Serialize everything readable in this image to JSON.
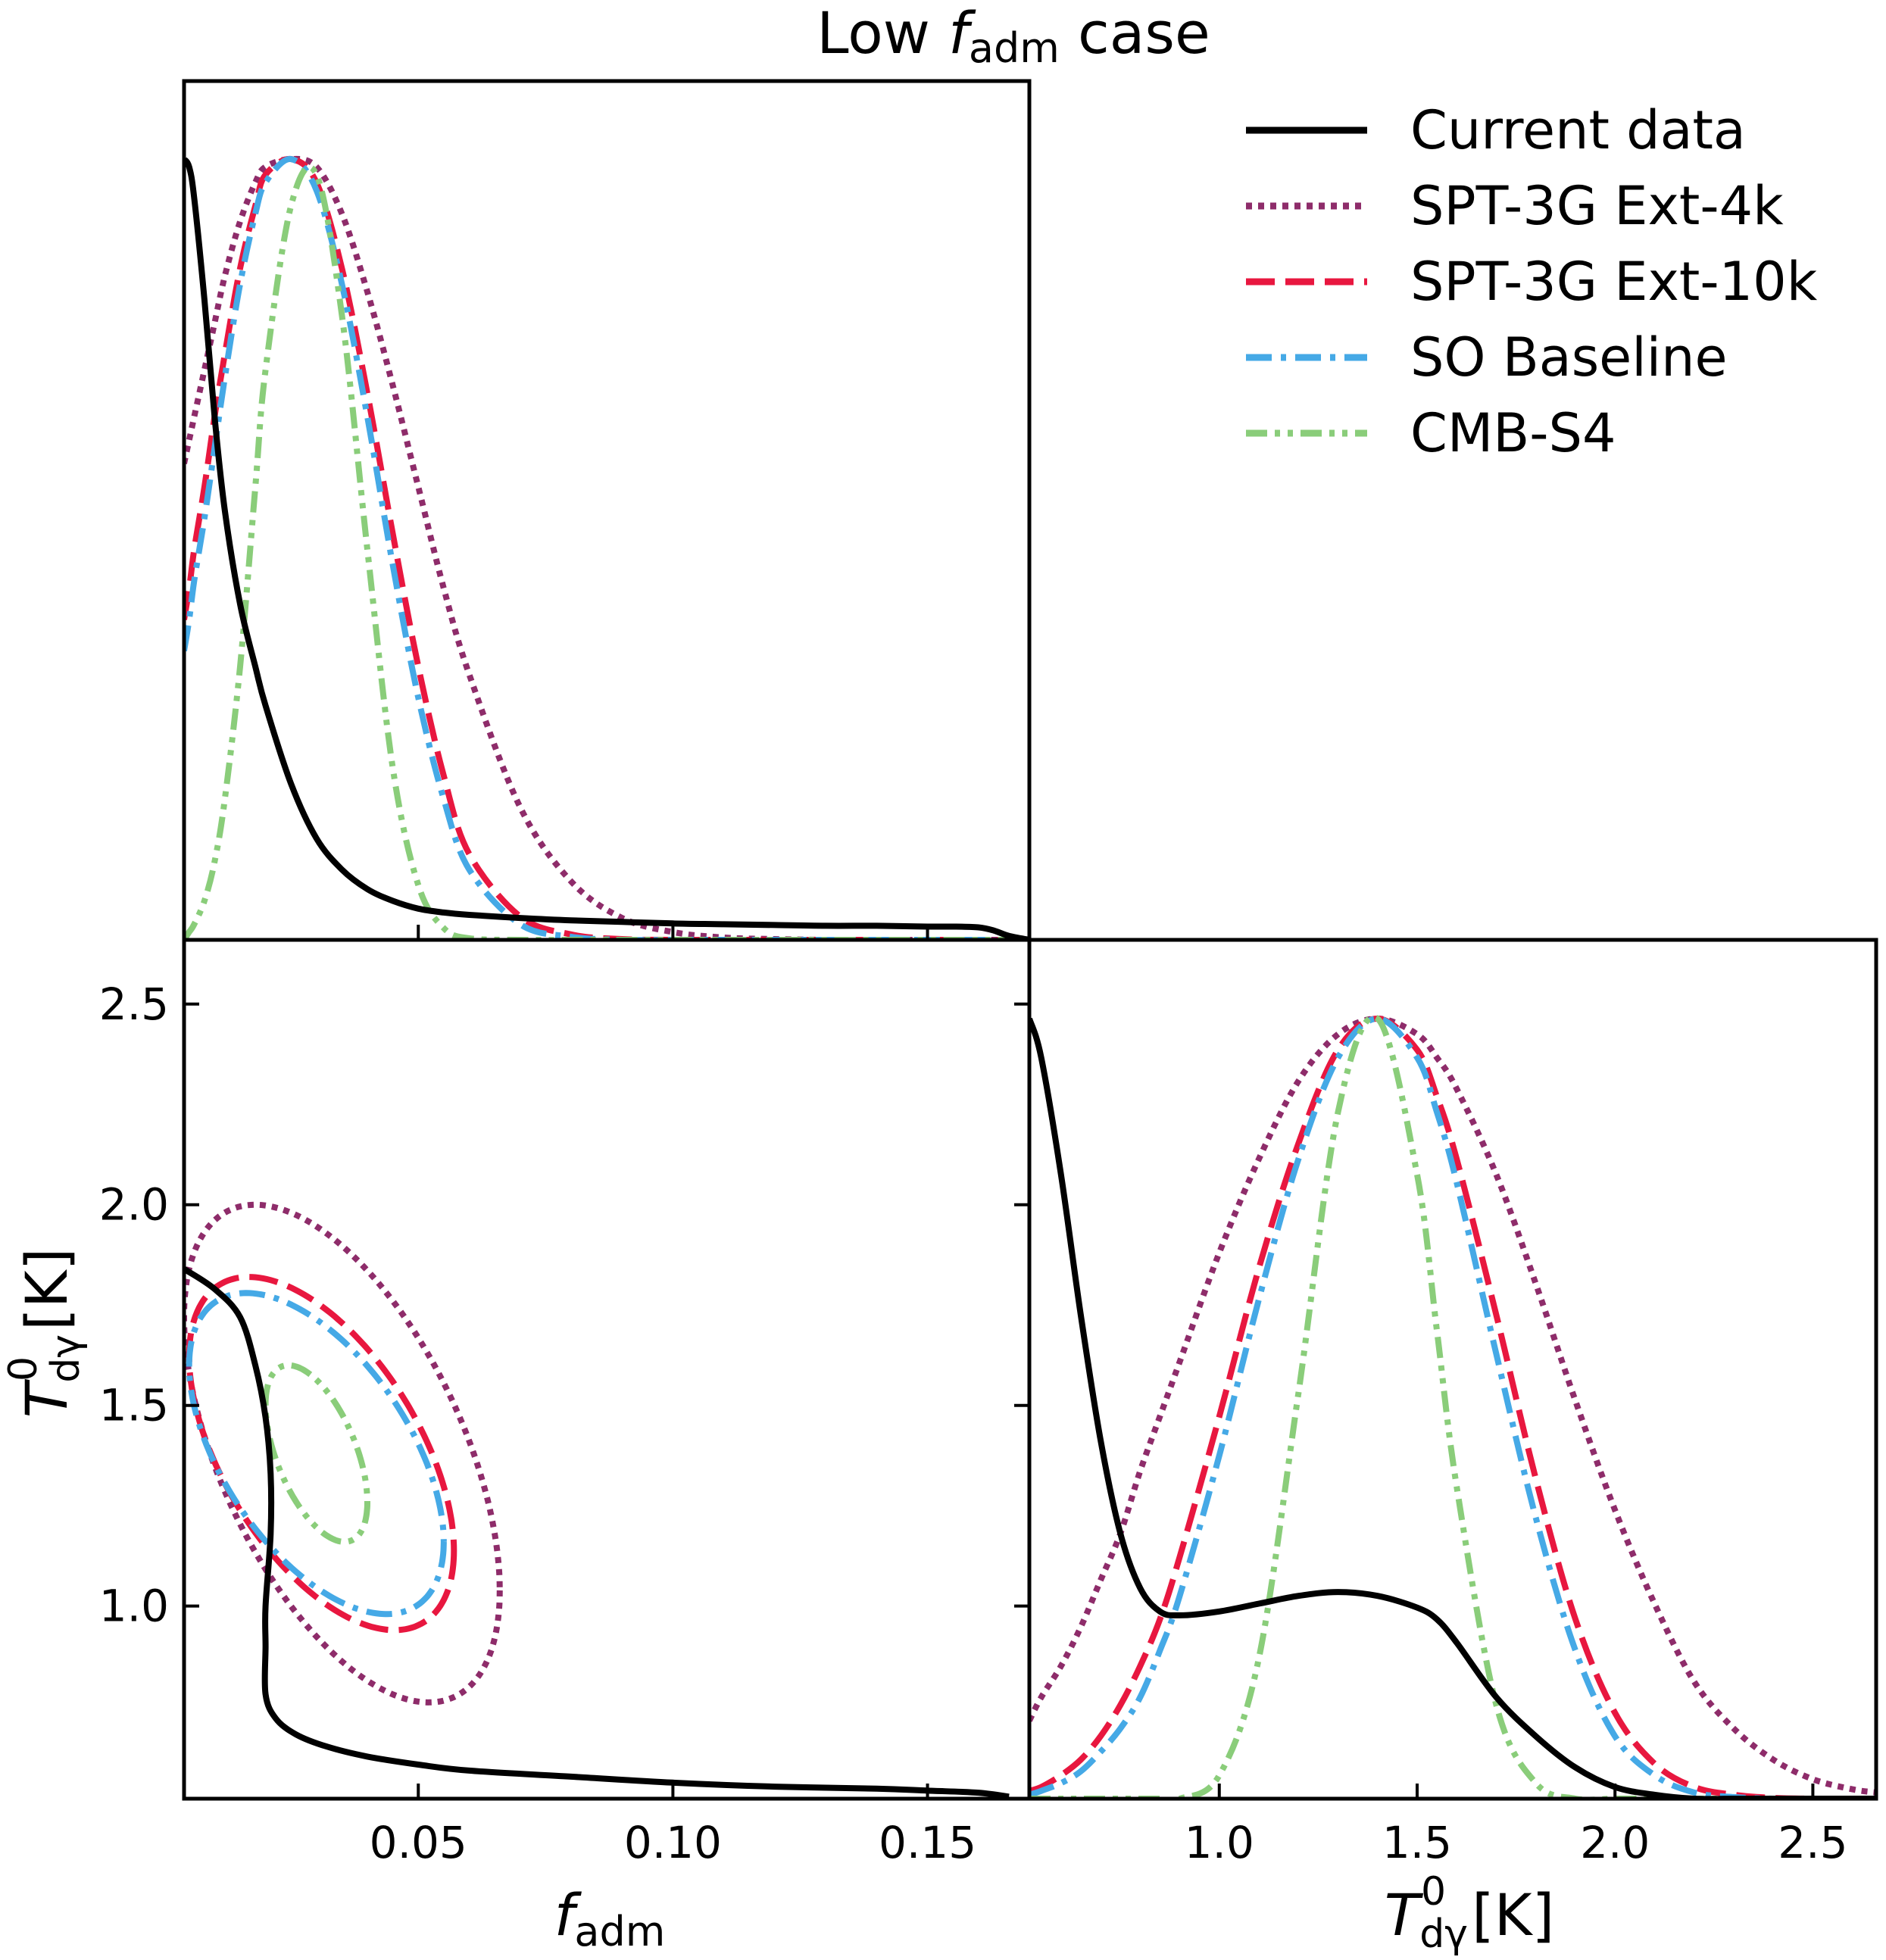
{
  "chart_data": {
    "type": "corner-plot",
    "title": "Low f_adm case",
    "title_parts": {
      "prefix": "Low ",
      "symbol": "f",
      "subscript": "adm",
      "suffix": " case"
    },
    "parameters": [
      {
        "name": "f_adm",
        "symbol": "f",
        "subscript": "adm",
        "unit": "",
        "range": [
          0.004,
          0.17
        ],
        "ticks": [
          0.05,
          0.1,
          0.15
        ],
        "tick_labels": [
          "0.05",
          "0.10",
          "0.15"
        ]
      },
      {
        "name": "T_dgamma^0",
        "symbol": "T",
        "superscript": "0",
        "subscript": "dγ",
        "unit": "[K]",
        "range": [
          0.52,
          2.66
        ],
        "ticks": [
          1.0,
          1.5,
          2.0,
          2.5
        ],
        "tick_labels": [
          "1.0",
          "1.5",
          "2.0",
          "2.5"
        ]
      }
    ],
    "legend": {
      "position": "top-right",
      "entries": [
        {
          "label": "Current data",
          "color": "#000000",
          "style": "solid"
        },
        {
          "label": "SPT-3G Ext-4k",
          "color": "#8e2c6a",
          "style": "dotted"
        },
        {
          "label": "SPT-3G Ext-10k",
          "color": "#e8173f",
          "style": "dashed"
        },
        {
          "label": "SO Baseline",
          "color": "#45a9e6",
          "style": "dashdot"
        },
        {
          "label": "CMB-S4",
          "color": "#8acd7a",
          "style": "dashdotdot"
        }
      ]
    },
    "f_adm_1d": {
      "x": [
        0.004,
        0.005,
        0.006,
        0.008,
        0.01,
        0.012,
        0.015,
        0.018,
        0.02,
        0.025,
        0.03,
        0.035,
        0.04,
        0.045,
        0.05,
        0.055,
        0.06,
        0.07,
        0.08,
        0.09,
        0.1,
        0.11,
        0.12,
        0.13,
        0.14,
        0.15,
        0.155,
        0.16,
        0.163,
        0.166,
        0.17
      ],
      "series": [
        {
          "name": "Current data",
          "values": [
            1.0,
            0.99,
            0.95,
            0.82,
            0.67,
            0.55,
            0.43,
            0.35,
            0.3,
            0.2,
            0.13,
            0.09,
            0.065,
            0.05,
            0.04,
            0.035,
            0.032,
            0.028,
            0.025,
            0.023,
            0.021,
            0.02,
            0.019,
            0.018,
            0.018,
            0.017,
            0.017,
            0.016,
            0.012,
            0.005,
            0.0
          ]
        },
        {
          "name": "SPT-3G Ext-4k",
          "values": [
            0.61,
            0.64,
            0.67,
            0.73,
            0.79,
            0.85,
            0.92,
            0.97,
            0.99,
            1.0,
            0.99,
            0.93,
            0.83,
            0.71,
            0.58,
            0.45,
            0.34,
            0.17,
            0.075,
            0.028,
            0.01,
            0.003,
            0.001,
            0.0,
            0.0,
            0.0,
            0.0,
            0.0,
            0.0,
            0.0,
            0.0
          ]
        },
        {
          "name": "SPT-3G Ext-10k",
          "values": [
            0.41,
            0.45,
            0.5,
            0.58,
            0.67,
            0.75,
            0.86,
            0.94,
            0.98,
            1.0,
            0.97,
            0.86,
            0.7,
            0.52,
            0.35,
            0.21,
            0.11,
            0.03,
            0.007,
            0.001,
            0.0,
            0.0,
            0.0,
            0.0,
            0.0,
            0.0,
            0.0,
            0.0,
            0.0,
            0.0,
            0.0
          ]
        },
        {
          "name": "SO Baseline",
          "values": [
            0.37,
            0.41,
            0.46,
            0.54,
            0.63,
            0.72,
            0.84,
            0.93,
            0.97,
            1.0,
            0.96,
            0.84,
            0.67,
            0.48,
            0.31,
            0.18,
            0.09,
            0.02,
            0.004,
            0.0,
            0.0,
            0.0,
            0.0,
            0.0,
            0.0,
            0.0,
            0.0,
            0.0,
            0.0,
            0.0,
            0.0
          ]
        },
        {
          "name": "CMB-S4",
          "values": [
            0.0,
            0.01,
            0.02,
            0.05,
            0.1,
            0.18,
            0.35,
            0.58,
            0.73,
            0.94,
            0.98,
            0.8,
            0.5,
            0.22,
            0.07,
            0.015,
            0.002,
            0.0,
            0.0,
            0.0,
            0.0,
            0.0,
            0.0,
            0.0,
            0.0,
            0.0,
            0.0,
            0.0,
            0.0,
            0.0,
            0.0
          ]
        }
      ]
    },
    "T_1d": {
      "x": [
        0.52,
        0.55,
        0.6,
        0.65,
        0.7,
        0.75,
        0.8,
        0.85,
        0.9,
        1.0,
        1.1,
        1.2,
        1.3,
        1.4,
        1.5,
        1.55,
        1.6,
        1.7,
        1.8,
        1.9,
        2.0,
        2.1,
        2.2,
        2.3,
        2.4,
        2.5,
        2.6,
        2.66
      ],
      "series": [
        {
          "name": "Current data",
          "values": [
            1.0,
            0.95,
            0.8,
            0.62,
            0.46,
            0.34,
            0.27,
            0.24,
            0.235,
            0.24,
            0.25,
            0.26,
            0.265,
            0.26,
            0.245,
            0.23,
            0.2,
            0.13,
            0.08,
            0.04,
            0.015,
            0.005,
            0.0,
            0.0,
            0.0,
            0.0,
            0.0,
            0.0
          ]
        },
        {
          "name": "SPT-3G Ext-4k",
          "values": [
            0.1,
            0.13,
            0.17,
            0.22,
            0.28,
            0.34,
            0.42,
            0.49,
            0.56,
            0.7,
            0.82,
            0.92,
            0.98,
            1.0,
            0.98,
            0.95,
            0.91,
            0.8,
            0.66,
            0.51,
            0.37,
            0.25,
            0.15,
            0.09,
            0.05,
            0.025,
            0.012,
            0.008
          ]
        },
        {
          "name": "SPT-3G Ext-10k",
          "values": [
            0.01,
            0.015,
            0.03,
            0.05,
            0.08,
            0.12,
            0.17,
            0.23,
            0.31,
            0.49,
            0.68,
            0.84,
            0.96,
            1.0,
            0.96,
            0.9,
            0.82,
            0.62,
            0.41,
            0.23,
            0.11,
            0.045,
            0.015,
            0.005,
            0.001,
            0.0,
            0.0,
            0.0
          ]
        },
        {
          "name": "SO Baseline",
          "values": [
            0.005,
            0.01,
            0.02,
            0.035,
            0.06,
            0.09,
            0.13,
            0.19,
            0.26,
            0.44,
            0.64,
            0.82,
            0.95,
            1.0,
            0.95,
            0.88,
            0.79,
            0.57,
            0.36,
            0.19,
            0.08,
            0.03,
            0.008,
            0.002,
            0.0,
            0.0,
            0.0,
            0.0
          ]
        },
        {
          "name": "CMB-S4",
          "values": [
            0.0,
            0.0,
            0.0,
            0.0,
            0.0,
            0.0,
            0.0,
            0.0,
            0.0,
            0.03,
            0.18,
            0.52,
            0.88,
            1.0,
            0.8,
            0.6,
            0.4,
            0.12,
            0.02,
            0.0,
            0.0,
            0.0,
            0.0,
            0.0,
            0.0,
            0.0,
            0.0,
            0.0
          ]
        }
      ]
    },
    "contours_2d": [
      {
        "name": "SPT-3G Ext-4k",
        "center": [
          0.035,
          1.38
        ],
        "f_half_width": 0.031,
        "T_half_width": 0.62,
        "rho": -0.55
      },
      {
        "name": "SPT-3G Ext-10k",
        "center": [
          0.031,
          1.38
        ],
        "f_half_width": 0.026,
        "T_half_width": 0.44,
        "rho": -0.55
      },
      {
        "name": "SO Baseline",
        "center": [
          0.03,
          1.38
        ],
        "f_half_width": 0.025,
        "T_half_width": 0.4,
        "rho": -0.55
      },
      {
        "name": "CMB-S4",
        "center": [
          0.03,
          1.38
        ],
        "f_half_width": 0.01,
        "T_half_width": 0.22,
        "rho": -0.55
      },
      {
        "name": "Current data",
        "type": "boundary",
        "f": [
          0.004,
          0.01,
          0.015,
          0.018,
          0.02,
          0.021,
          0.021,
          0.02,
          0.02,
          0.02,
          0.022,
          0.026,
          0.032,
          0.04,
          0.05,
          0.06,
          0.08,
          0.1,
          0.12,
          0.14,
          0.15,
          0.16,
          0.166
        ],
        "T": [
          1.84,
          1.79,
          1.72,
          1.6,
          1.47,
          1.33,
          1.18,
          1.0,
          0.9,
          0.78,
          0.72,
          0.68,
          0.65,
          0.625,
          0.605,
          0.59,
          0.575,
          0.56,
          0.55,
          0.545,
          0.54,
          0.535,
          0.525
        ]
      }
    ]
  }
}
